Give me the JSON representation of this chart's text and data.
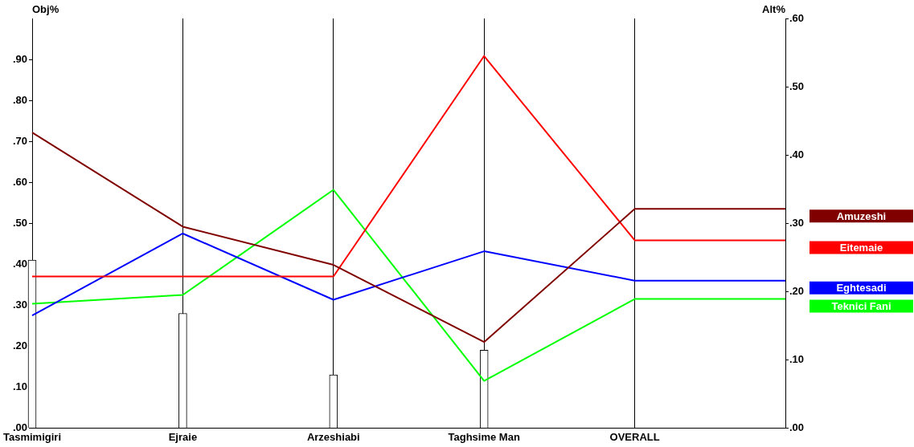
{
  "chart_data": {
    "type": "line",
    "ylabel": "Obj%",
    "y2label": "Alt%",
    "categories": [
      "Tasmimigiri",
      "Ejraie",
      "Arzeshiabi",
      "Taghsime Man",
      "OVERALL",
      null
    ],
    "ylim": [
      0,
      1
    ],
    "yticks": [
      {
        "value": 0,
        "label": ".00"
      },
      {
        "value": 0.1,
        "label": ".10"
      },
      {
        "value": 0.2,
        "label": ".20"
      },
      {
        "value": 0.3,
        "label": ".30"
      },
      {
        "value": 0.4,
        "label": ".40"
      },
      {
        "value": 0.5,
        "label": ".50"
      },
      {
        "value": 0.6,
        "label": ".60"
      },
      {
        "value": 0.7,
        "label": ".70"
      },
      {
        "value": 0.8,
        "label": ".80"
      },
      {
        "value": 0.9,
        "label": ".90"
      }
    ],
    "y2lim": [
      0,
      0.6
    ],
    "y2ticks": [
      {
        "value": 0,
        "label": ".00"
      },
      {
        "value": 0.1,
        "label": ".10"
      },
      {
        "value": 0.2,
        "label": ".20"
      },
      {
        "value": 0.3,
        "label": ".30"
      },
      {
        "value": 0.4,
        "label": ".40"
      },
      {
        "value": 0.5,
        "label": ".50"
      },
      {
        "value": 0.6,
        "label": ".60"
      }
    ],
    "grid": "x",
    "legend": "right",
    "series": [
      {
        "type": "bar",
        "color": "#ffffff",
        "axis": "y",
        "values": [
          0.41,
          0.28,
          0.13,
          0.19,
          null,
          null
        ]
      },
      {
        "name": "Amuzeshi",
        "color": "#800000",
        "axis": "y2",
        "values": [
          0.433,
          0.295,
          0.239,
          0.126,
          0.321,
          0.321
        ]
      },
      {
        "name": "Eitemaie",
        "color": "#ff0000",
        "axis": "y2",
        "values": [
          0.222,
          0.222,
          0.222,
          0.545,
          0.275,
          0.275
        ]
      },
      {
        "name": "Eghtesadi",
        "color": "#0000ff",
        "axis": "y2",
        "values": [
          0.165,
          0.285,
          0.188,
          0.259,
          0.216,
          0.216
        ]
      },
      {
        "name": "Teknici Fani",
        "color": "#00ff00",
        "axis": "y2",
        "values": [
          0.182,
          0.195,
          0.349,
          0.069,
          0.189,
          0.189
        ]
      }
    ]
  }
}
